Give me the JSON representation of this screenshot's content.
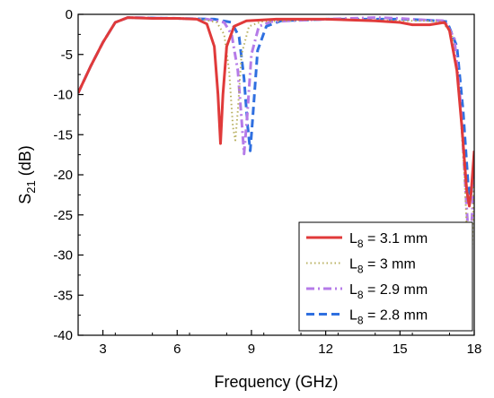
{
  "chart_data": {
    "type": "line",
    "xlabel": "Frequency (GHz)",
    "ylabel": {
      "main": "S",
      "sub": "21",
      "rest": " (dB)"
    },
    "xlim": [
      2,
      18
    ],
    "ylim": [
      -40,
      0
    ],
    "xticks": [
      3,
      6,
      9,
      12,
      15,
      18
    ],
    "yticks": [
      0,
      -5,
      -10,
      -15,
      -20,
      -25,
      -30,
      -35,
      -40
    ],
    "grid": false,
    "legend_position": "bottom-right",
    "series": [
      {
        "name": {
          "main": "L",
          "sub": "8",
          "rest": " = 3.1 mm"
        },
        "color": "#e03a3a",
        "dash": "solid",
        "points": [
          [
            2,
            -9.8
          ],
          [
            2.5,
            -6.5
          ],
          [
            3,
            -3.5
          ],
          [
            3.5,
            -1.0
          ],
          [
            4,
            -0.4
          ],
          [
            5,
            -0.5
          ],
          [
            6,
            -0.5
          ],
          [
            6.8,
            -0.6
          ],
          [
            7.2,
            -1.2
          ],
          [
            7.5,
            -4.0
          ],
          [
            7.65,
            -10.0
          ],
          [
            7.75,
            -16.1
          ],
          [
            7.85,
            -10.0
          ],
          [
            8.0,
            -4.0
          ],
          [
            8.3,
            -1.5
          ],
          [
            8.8,
            -0.8
          ],
          [
            10,
            -0.6
          ],
          [
            12,
            -0.6
          ],
          [
            14,
            -0.8
          ],
          [
            15,
            -1.0
          ],
          [
            15.5,
            -1.3
          ],
          [
            16.2,
            -1.3
          ],
          [
            16.8,
            -1.0
          ],
          [
            17.0,
            -2.0
          ],
          [
            17.3,
            -7.0
          ],
          [
            17.5,
            -14.0
          ],
          [
            17.7,
            -22.0
          ],
          [
            17.8,
            -23.9
          ],
          [
            17.88,
            -22.0
          ],
          [
            18,
            -17.0
          ]
        ]
      },
      {
        "name": {
          "main": "L",
          "sub": "8",
          "rest": " = 3 mm"
        },
        "color": "#b8b060",
        "dash": "dotted",
        "points": [
          [
            2,
            -9.8
          ],
          [
            2.5,
            -6.5
          ],
          [
            3,
            -3.5
          ],
          [
            3.5,
            -1.0
          ],
          [
            4,
            -0.4
          ],
          [
            6,
            -0.5
          ],
          [
            7,
            -0.6
          ],
          [
            7.6,
            -1.0
          ],
          [
            7.9,
            -2.5
          ],
          [
            8.1,
            -7.0
          ],
          [
            8.25,
            -14.0
          ],
          [
            8.35,
            -15.7
          ],
          [
            8.45,
            -12.0
          ],
          [
            8.6,
            -5.0
          ],
          [
            8.9,
            -1.5
          ],
          [
            9.4,
            -0.9
          ],
          [
            12,
            -0.6
          ],
          [
            14,
            -0.7
          ],
          [
            15,
            -0.8
          ],
          [
            16,
            -0.8
          ],
          [
            16.7,
            -0.9
          ],
          [
            17.1,
            -2.5
          ],
          [
            17.4,
            -10.0
          ],
          [
            17.6,
            -20.0
          ],
          [
            17.75,
            -30.0
          ],
          [
            17.85,
            -36.0
          ],
          [
            17.92,
            -28.0
          ],
          [
            18,
            -20.0
          ]
        ]
      },
      {
        "name": {
          "main": "L",
          "sub": "8",
          "rest": " = 2.9 mm"
        },
        "color": "#b57be8",
        "dash": "dashdot",
        "points": [
          [
            2,
            -9.8
          ],
          [
            2.5,
            -6.5
          ],
          [
            3,
            -3.5
          ],
          [
            3.5,
            -1.0
          ],
          [
            4,
            -0.4
          ],
          [
            6,
            -0.5
          ],
          [
            7.2,
            -0.6
          ],
          [
            7.9,
            -1.0
          ],
          [
            8.2,
            -2.5
          ],
          [
            8.45,
            -7.0
          ],
          [
            8.6,
            -13.0
          ],
          [
            8.7,
            -17.4
          ],
          [
            8.82,
            -13.0
          ],
          [
            9.0,
            -5.0
          ],
          [
            9.3,
            -1.5
          ],
          [
            9.8,
            -0.9
          ],
          [
            12,
            -0.6
          ],
          [
            14,
            -0.4
          ],
          [
            15,
            -0.5
          ],
          [
            16,
            -0.7
          ],
          [
            16.8,
            -0.8
          ],
          [
            17.2,
            -3.0
          ],
          [
            17.45,
            -11.0
          ],
          [
            17.65,
            -22.0
          ],
          [
            17.8,
            -29.5
          ],
          [
            17.9,
            -26.0
          ],
          [
            18,
            -20.0
          ]
        ]
      },
      {
        "name": {
          "main": "L",
          "sub": "8",
          "rest": " = 2.8 mm"
        },
        "color": "#2f6fe0",
        "dash": "dashed",
        "points": [
          [
            2,
            -9.8
          ],
          [
            2.5,
            -6.5
          ],
          [
            3,
            -3.5
          ],
          [
            3.5,
            -1.0
          ],
          [
            4,
            -0.4
          ],
          [
            6,
            -0.5
          ],
          [
            7.5,
            -0.6
          ],
          [
            8.2,
            -1.0
          ],
          [
            8.5,
            -2.8
          ],
          [
            8.7,
            -8.0
          ],
          [
            8.85,
            -14.0
          ],
          [
            8.95,
            -17.0
          ],
          [
            9.05,
            -13.0
          ],
          [
            9.25,
            -4.5
          ],
          [
            9.6,
            -1.5
          ],
          [
            10.2,
            -0.8
          ],
          [
            12,
            -0.6
          ],
          [
            14,
            -0.6
          ],
          [
            15,
            -0.6
          ],
          [
            16,
            -0.7
          ],
          [
            16.9,
            -0.9
          ],
          [
            17.3,
            -4.0
          ],
          [
            17.55,
            -12.0
          ],
          [
            17.75,
            -21.0
          ],
          [
            17.85,
            -22.8
          ],
          [
            17.93,
            -21.0
          ],
          [
            18,
            -18.0
          ]
        ]
      }
    ]
  }
}
